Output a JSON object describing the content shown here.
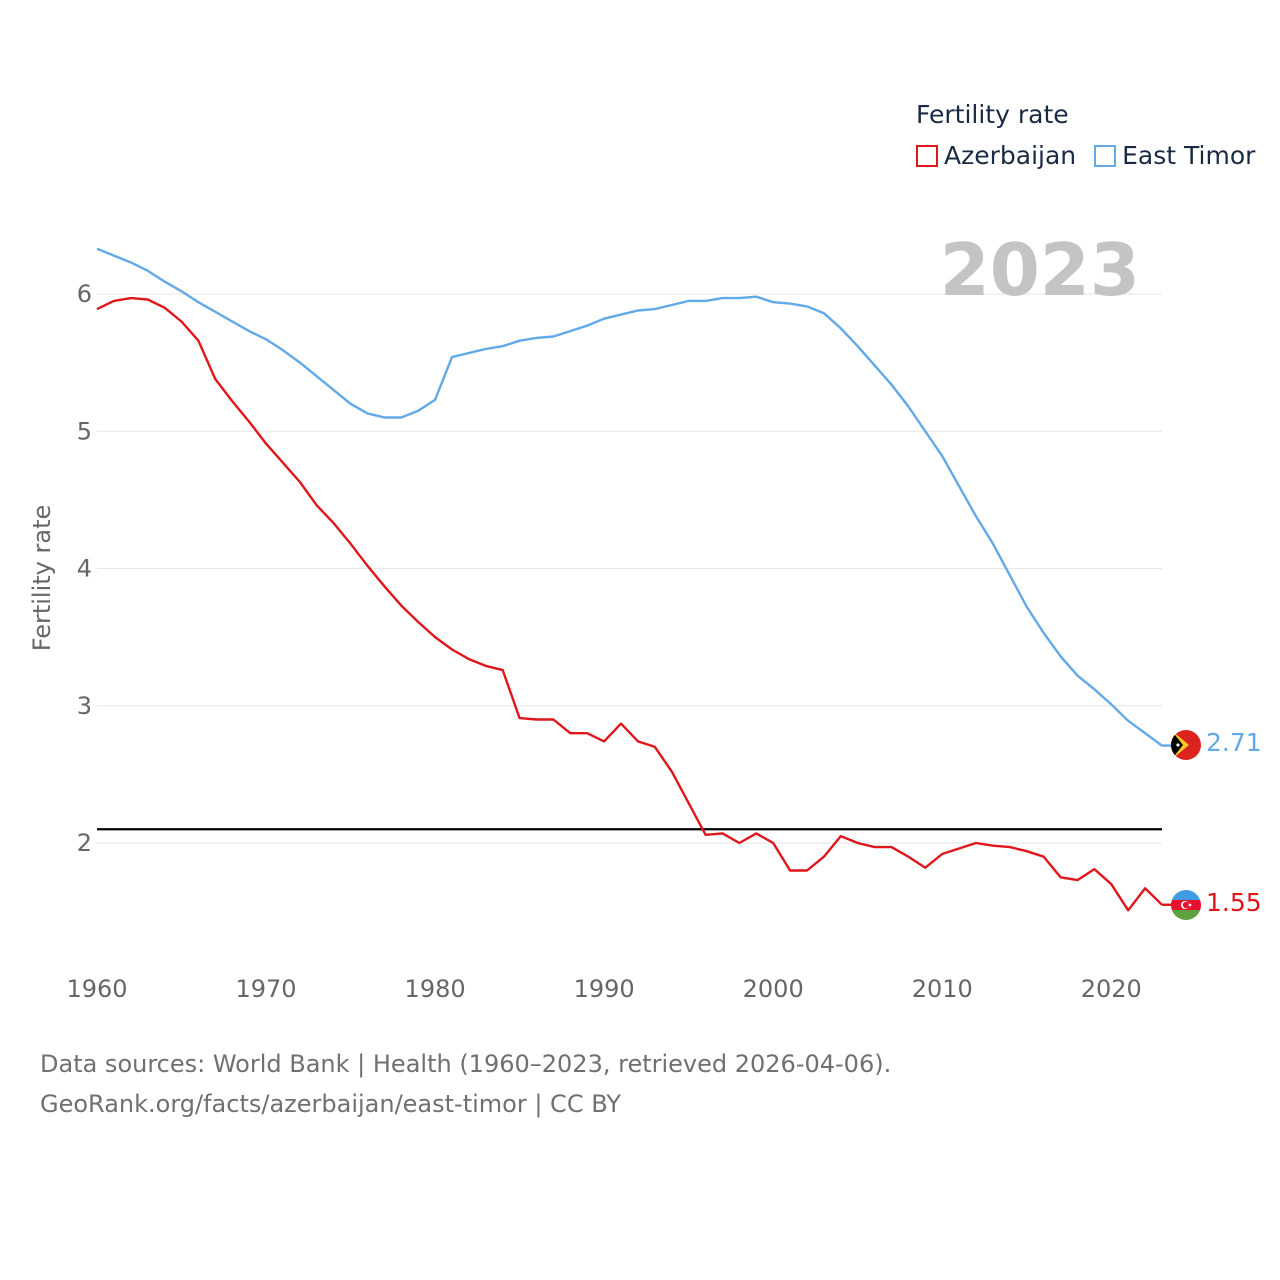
{
  "legend": {
    "title": "Fertility rate",
    "items": [
      {
        "name": "Azerbaijan",
        "color": "#e0161b"
      },
      {
        "name": "East Timor",
        "color": "#62a9e8"
      }
    ]
  },
  "year_label": "2023",
  "footer": {
    "line1": "Data sources: World Bank | Health (1960–2023, retrieved 2026-04-06).",
    "line2": "GeoRank.org/facts/azerbaijan/east-timor | CC BY"
  },
  "end_labels": {
    "east_timor": "2.71",
    "azerbaijan": "1.55"
  },
  "chart_data": {
    "type": "line",
    "title": "Fertility rate",
    "xlabel": "",
    "ylabel": "Fertility rate",
    "xlim": [
      1960,
      2023
    ],
    "ylim": [
      1.1,
      6.8
    ],
    "x_ticks": [
      1960,
      1970,
      1980,
      1990,
      2000,
      2010,
      2020
    ],
    "y_ticks": [
      2,
      3,
      4,
      5,
      6
    ],
    "reference_line": {
      "y": 2.1,
      "color": "#000000"
    },
    "x": [
      1960,
      1961,
      1962,
      1963,
      1964,
      1965,
      1966,
      1967,
      1968,
      1969,
      1970,
      1971,
      1972,
      1973,
      1974,
      1975,
      1976,
      1977,
      1978,
      1979,
      1980,
      1981,
      1982,
      1983,
      1984,
      1985,
      1986,
      1987,
      1988,
      1989,
      1990,
      1991,
      1992,
      1993,
      1994,
      1995,
      1996,
      1997,
      1998,
      1999,
      2000,
      2001,
      2002,
      2003,
      2004,
      2005,
      2006,
      2007,
      2008,
      2009,
      2010,
      2011,
      2012,
      2013,
      2014,
      2015,
      2016,
      2017,
      2018,
      2019,
      2020,
      2021,
      2022,
      2023
    ],
    "series": [
      {
        "name": "Azerbaijan",
        "color": "#e0161b",
        "values": [
          5.89,
          5.95,
          5.97,
          5.96,
          5.9,
          5.8,
          5.66,
          5.38,
          5.22,
          5.07,
          4.91,
          4.77,
          4.63,
          4.46,
          4.33,
          4.18,
          4.02,
          3.87,
          3.73,
          3.61,
          3.5,
          3.41,
          3.34,
          3.29,
          3.26,
          2.91,
          2.9,
          2.9,
          2.8,
          2.8,
          2.74,
          2.87,
          2.74,
          2.7,
          2.52,
          2.29,
          2.06,
          2.07,
          2.0,
          2.07,
          2.0,
          1.8,
          1.8,
          1.9,
          2.05,
          2.0,
          1.97,
          1.97,
          1.9,
          1.82,
          1.92,
          1.96,
          2.0,
          1.98,
          1.97,
          1.94,
          1.9,
          1.75,
          1.73,
          1.81,
          1.7,
          1.51,
          1.67,
          1.55
        ]
      },
      {
        "name": "East Timor",
        "color": "#62a9e8",
        "values": [
          6.33,
          6.28,
          6.23,
          6.17,
          6.09,
          6.02,
          5.94,
          5.87,
          5.8,
          5.73,
          5.67,
          5.59,
          5.5,
          5.4,
          5.3,
          5.2,
          5.13,
          5.1,
          5.1,
          5.15,
          5.23,
          5.54,
          5.57,
          5.6,
          5.62,
          5.66,
          5.68,
          5.69,
          5.73,
          5.77,
          5.82,
          5.85,
          5.88,
          5.89,
          5.92,
          5.95,
          5.95,
          5.97,
          5.97,
          5.98,
          5.94,
          5.93,
          5.91,
          5.86,
          5.75,
          5.62,
          5.48,
          5.34,
          5.18,
          5.0,
          4.82,
          4.6,
          4.38,
          4.18,
          3.95,
          3.72,
          3.53,
          3.36,
          3.22,
          3.12,
          3.01,
          2.89,
          2.8,
          2.71
        ]
      }
    ]
  }
}
